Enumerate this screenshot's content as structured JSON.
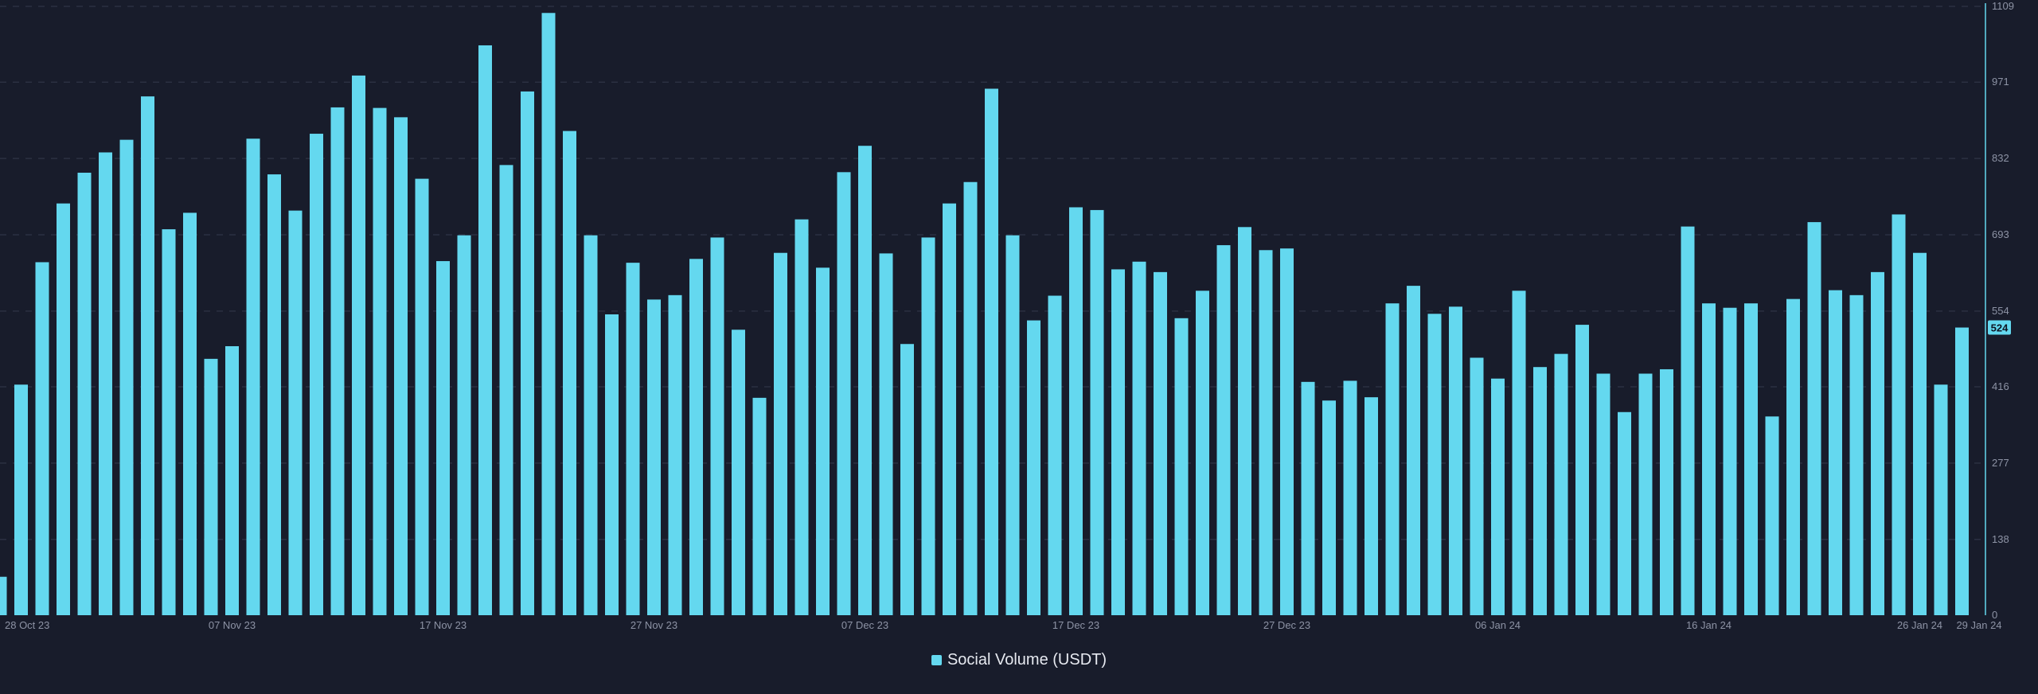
{
  "colors": {
    "background": "#181c2b",
    "bar": "#64d8ef",
    "grid": "#2b3042",
    "axis_text": "#8d93a5",
    "axis_line": "#64d8ef",
    "badge_text": "#0f1422"
  },
  "chart_data": {
    "type": "bar",
    "title": "",
    "xlabel": "",
    "ylabel": "",
    "ylim": [
      0,
      1109
    ],
    "y_ticks": [
      0,
      138,
      277,
      416,
      554,
      693,
      832,
      971,
      1109
    ],
    "y_tick_labels": [
      "0",
      "138",
      "277",
      "416",
      "554",
      "693",
      "832",
      "971",
      "1109"
    ],
    "grid": true,
    "legend_position": "bottom-center",
    "x_start": "2023-10-27",
    "x_tick_labels": [
      {
        "label": "28 Oct 23",
        "index": 1
      },
      {
        "label": "07 Nov 23",
        "index": 11
      },
      {
        "label": "17 Nov 23",
        "index": 21
      },
      {
        "label": "27 Nov 23",
        "index": 31
      },
      {
        "label": "07 Dec 23",
        "index": 41
      },
      {
        "label": "17 Dec 23",
        "index": 51
      },
      {
        "label": "27 Dec 23",
        "index": 61
      },
      {
        "label": "06 Jan 24",
        "index": 71
      },
      {
        "label": "16 Jan 24",
        "index": 81
      },
      {
        "label": "26 Jan 24",
        "index": 91
      },
      {
        "label": "29 Jan 24",
        "index": 94
      }
    ],
    "current_value_label": "524",
    "series": [
      {
        "name": "Social Volume (USDT)",
        "values": [
          70,
          420,
          643,
          750,
          806,
          843,
          866,
          945,
          703,
          733,
          467,
          490,
          868,
          803,
          737,
          877,
          925,
          983,
          924,
          907,
          795,
          645,
          692,
          1038,
          820,
          954,
          1097,
          882,
          692,
          548,
          642,
          575,
          583,
          649,
          688,
          520,
          396,
          660,
          721,
          633,
          807,
          855,
          659,
          494,
          688,
          750,
          789,
          959,
          692,
          537,
          582,
          743,
          738,
          630,
          644,
          625,
          541,
          591,
          674,
          707,
          665,
          668,
          425,
          391,
          427,
          397,
          568,
          600,
          549,
          562,
          469,
          431,
          591,
          452,
          476,
          529,
          440,
          370,
          440,
          448,
          708,
          568,
          560,
          568,
          362,
          576,
          716,
          592,
          583,
          625,
          730,
          660,
          420,
          524
        ]
      }
    ]
  }
}
